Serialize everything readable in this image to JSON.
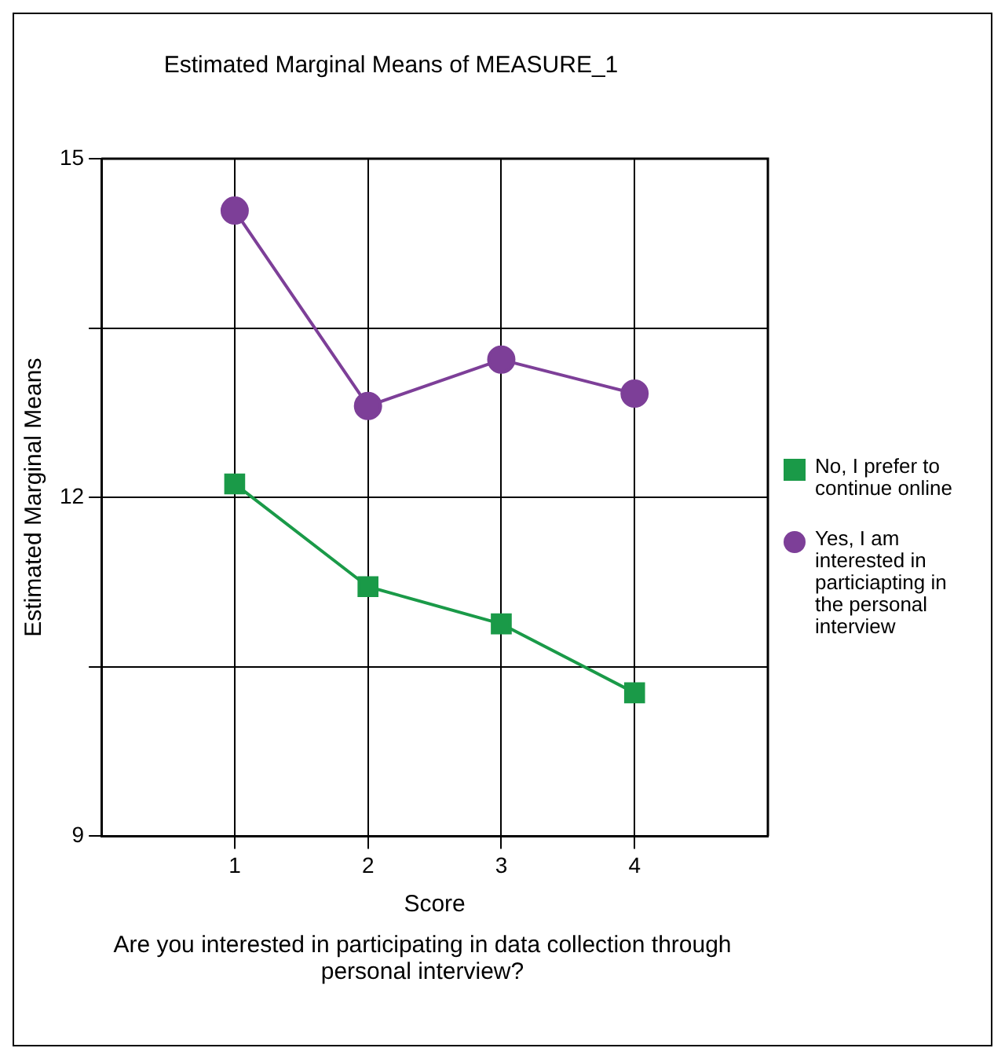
{
  "chart_data": {
    "type": "line",
    "title": "Estimated Marginal Means of MEASURE_1",
    "xlabel": "Score",
    "ylabel": "Estimated Marginal Means",
    "annotations": [
      "Are you interested in participating in data collection through personal interview?"
    ],
    "x": [
      1,
      2,
      3,
      4
    ],
    "xlim": [
      0,
      5
    ],
    "xticks": [
      1,
      2,
      3,
      4
    ],
    "ylim": [
      9,
      15
    ],
    "yticks": [
      9,
      {
        "value": 10.5,
        "label": null
      },
      12,
      {
        "value": 13.5,
        "label": null
      },
      15
    ],
    "grid": true,
    "legend": "right",
    "line_style": "solid",
    "series": [
      {
        "name": "No, I prefer to continue online",
        "color": "#1a9a48",
        "marker": "square",
        "values": [
          12.12,
          11.21,
          10.88,
          10.27
        ]
      },
      {
        "name": "Yes, I am interested in particiapting in the personal interview",
        "color": "#7d3f98",
        "marker": "circle",
        "values": [
          14.54,
          12.81,
          13.22,
          12.92
        ]
      }
    ]
  }
}
